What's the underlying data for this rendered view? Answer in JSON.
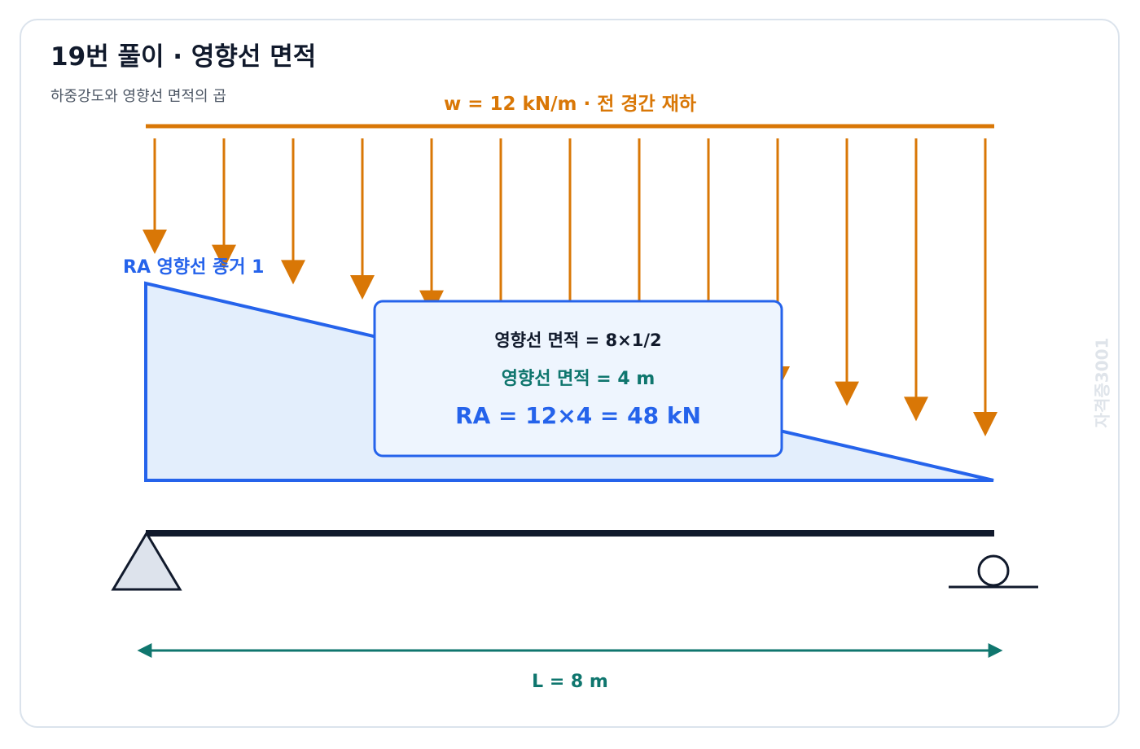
{
  "header": {
    "title": "19번 풀이 · 영향선 면적",
    "subtitle": "하중강도와 영향선 면적의 곱"
  },
  "load": {
    "label": "w = 12 kN/m · 전 경간 재하",
    "arrow_count": 13,
    "color": "#d97706"
  },
  "influence_line": {
    "label": "RA 영향선 종거 1",
    "color": "#2563eb",
    "fill": "#e3eefc"
  },
  "result_box": {
    "line1": "영향선 면적 = 8×1/2",
    "line2": "영향선 면적 = 4 m",
    "line3": "RA = 12×4 = 48 kN"
  },
  "span": {
    "label": "L = 8 m",
    "color": "#0f766e"
  },
  "watermark": "자격증3001",
  "colors": {
    "beam": "#111a2c",
    "support_fill": "#dde3ec",
    "box_border": "#2563eb",
    "box_fill": "#eef5fe"
  }
}
